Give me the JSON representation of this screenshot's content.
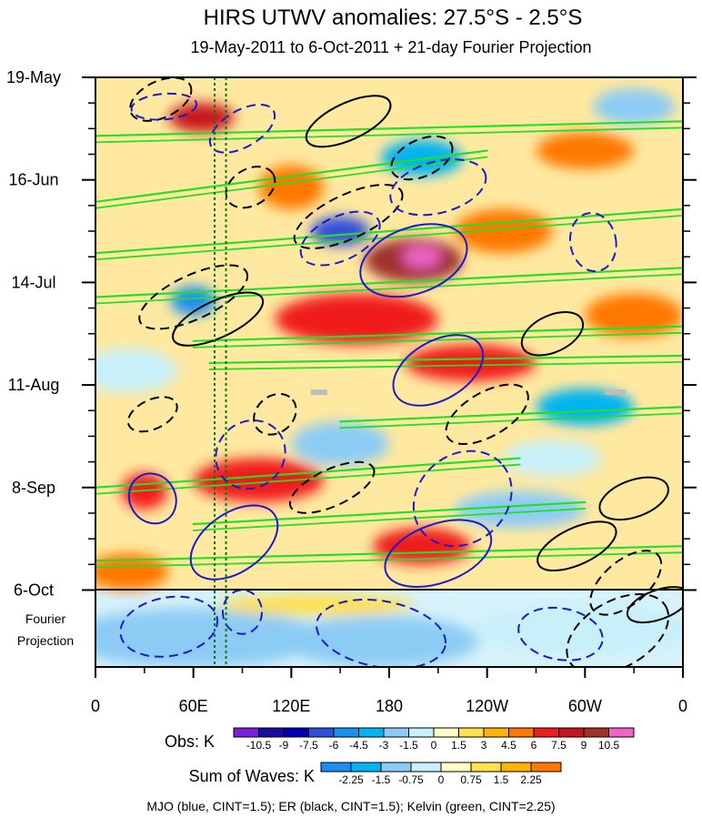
{
  "chart_data": {
    "type": "heatmap",
    "title": "HIRS UTWV anomalies: 27.5°S - 2.5°S",
    "subtitle": "19-May-2011 to 6-Oct-2011 + 21-day Fourier Projection",
    "x_axis": {
      "ticks": [
        "0",
        "60E",
        "120E",
        "180",
        "120W",
        "60W",
        "0"
      ],
      "tick_values": [
        0,
        60,
        120,
        180,
        240,
        300,
        360
      ],
      "range": [
        0,
        360
      ],
      "units": "degrees longitude"
    },
    "y_axis": {
      "ticks": [
        "19-May",
        "16-Jun",
        "14-Jul",
        "11-Aug",
        "8-Sep",
        "6-Oct"
      ],
      "tick_days": [
        0,
        28,
        56,
        84,
        112,
        140
      ],
      "range_days": [
        0,
        161
      ],
      "projection_label_line1": "Fourier",
      "projection_label_line2": "Projection",
      "projection_start_day": 140,
      "projection_length_days": 21
    },
    "obs_colorbar": {
      "label": "Obs: K",
      "levels": [
        "-10.5",
        "-9",
        "-7.5",
        "-6",
        "-4.5",
        "-3",
        "-1.5",
        "0",
        "1.5",
        "3",
        "4.5",
        "6",
        "7.5",
        "9",
        "10.5"
      ],
      "colors": [
        "#7a1fe0",
        "#1a0c9e",
        "#0000b4",
        "#3050d8",
        "#1a8ff0",
        "#00b4f0",
        "#8cccf4",
        "#c8f0fa",
        "#ffffc8",
        "#ffe050",
        "#ffb400",
        "#ff7800",
        "#f01e1e",
        "#c8141e",
        "#a0322d",
        "#f064c8"
      ]
    },
    "wave_colorbar": {
      "label": "Sum of Waves: K",
      "levels": [
        "-2.25",
        "-1.5",
        "-0.75",
        "0",
        "0.75",
        "1.5",
        "2.25"
      ],
      "colors": [
        "#1a8ff0",
        "#00b4f0",
        "#8cccf4",
        "#c8f0fa",
        "#ffffc8",
        "#ffe050",
        "#ffb400",
        "#ff7800"
      ]
    },
    "overlay_legend": "MJO (blue, CINT=1.5); ER (black, CINT=1.5); Kelvin (green, CINT=2.25)",
    "reference_lines_lon": [
      73,
      80
    ],
    "missing_data_segments": [
      {
        "lon_start": 132,
        "lon_end": 142,
        "day": 86
      },
      {
        "lon_start": 312,
        "lon_end": 325,
        "day": 86
      }
    ],
    "mjo_contours": [
      {
        "lon": 42,
        "day": 8,
        "rx": 20,
        "ry": 3.5,
        "angle": -5,
        "sign": "neg"
      },
      {
        "lon": 90,
        "day": 14,
        "rx": 22,
        "ry": 5,
        "angle": -30,
        "sign": "neg"
      },
      {
        "lon": 150,
        "day": 44,
        "rx": 26,
        "ry": 6,
        "angle": -25,
        "sign": "neg"
      },
      {
        "lon": 195,
        "day": 50,
        "rx": 34,
        "ry": 9,
        "angle": -20,
        "sign": "pos"
      },
      {
        "lon": 210,
        "day": 30,
        "rx": 30,
        "ry": 7,
        "angle": -15,
        "sign": "neg"
      },
      {
        "lon": 305,
        "day": 45,
        "rx": 14,
        "ry": 8,
        "angle": -10,
        "sign": "neg"
      },
      {
        "lon": 210,
        "day": 80,
        "rx": 30,
        "ry": 8,
        "angle": -30,
        "sign": "pos"
      },
      {
        "lon": 95,
        "day": 103,
        "rx": 22,
        "ry": 9,
        "angle": -40,
        "sign": "neg"
      },
      {
        "lon": 35,
        "day": 115,
        "rx": 14,
        "ry": 7,
        "angle": -30,
        "sign": "pos"
      },
      {
        "lon": 225,
        "day": 115,
        "rx": 32,
        "ry": 12,
        "angle": -40,
        "sign": "neg"
      },
      {
        "lon": 85,
        "day": 127,
        "rx": 30,
        "ry": 8,
        "angle": -35,
        "sign": "pos"
      },
      {
        "lon": 210,
        "day": 130,
        "rx": 34,
        "ry": 8,
        "angle": -20,
        "sign": "pos"
      },
      {
        "lon": 45,
        "day": 150,
        "rx": 30,
        "ry": 8,
        "angle": -10,
        "sign": "neg"
      },
      {
        "lon": 90,
        "day": 146,
        "rx": 12,
        "ry": 6,
        "angle": 0,
        "sign": "neg"
      },
      {
        "lon": 175,
        "day": 152,
        "rx": 40,
        "ry": 9,
        "angle": 10,
        "sign": "neg"
      },
      {
        "lon": 285,
        "day": 152,
        "rx": 26,
        "ry": 7,
        "angle": 10,
        "sign": "neg"
      }
    ],
    "er_contours": [
      {
        "lon": 40,
        "day": 6,
        "rx": 20,
        "ry": 5,
        "angle": -25,
        "sign": "neg"
      },
      {
        "lon": 155,
        "day": 12,
        "rx": 28,
        "ry": 5,
        "angle": -25,
        "sign": "pos"
      },
      {
        "lon": 95,
        "day": 30,
        "rx": 16,
        "ry": 5,
        "angle": -30,
        "sign": "neg"
      },
      {
        "lon": 200,
        "day": 22,
        "rx": 20,
        "ry": 5,
        "angle": -25,
        "sign": "neg"
      },
      {
        "lon": 60,
        "day": 60,
        "rx": 36,
        "ry": 6,
        "angle": -25,
        "sign": "neg"
      },
      {
        "lon": 75,
        "day": 66,
        "rx": 30,
        "ry": 5,
        "angle": -25,
        "sign": "pos"
      },
      {
        "lon": 155,
        "day": 38,
        "rx": 36,
        "ry": 6,
        "angle": -25,
        "sign": "neg"
      },
      {
        "lon": 110,
        "day": 92,
        "rx": 14,
        "ry": 5,
        "angle": -40,
        "sign": "neg"
      },
      {
        "lon": 35,
        "day": 92,
        "rx": 16,
        "ry": 4,
        "angle": -25,
        "sign": "neg"
      },
      {
        "lon": 240,
        "day": 92,
        "rx": 28,
        "ry": 6,
        "angle": -30,
        "sign": "neg"
      },
      {
        "lon": 145,
        "day": 112,
        "rx": 28,
        "ry": 5,
        "angle": -25,
        "sign": "neg"
      },
      {
        "lon": 280,
        "day": 70,
        "rx": 20,
        "ry": 5,
        "angle": -25,
        "sign": "pos"
      },
      {
        "lon": 330,
        "day": 115,
        "rx": 22,
        "ry": 5,
        "angle": -20,
        "sign": "pos"
      },
      {
        "lon": 325,
        "day": 138,
        "rx": 26,
        "ry": 6,
        "angle": -40,
        "sign": "neg"
      },
      {
        "lon": 295,
        "day": 128,
        "rx": 26,
        "ry": 5,
        "angle": -25,
        "sign": "pos"
      },
      {
        "lon": 320,
        "day": 152,
        "rx": 34,
        "ry": 9,
        "angle": -30,
        "sign": "neg"
      },
      {
        "lon": 345,
        "day": 144,
        "rx": 20,
        "ry": 4,
        "angle": -20,
        "sign": "pos"
      }
    ],
    "kelvin_bands": [
      {
        "lon_start": 0,
        "day_start": 16,
        "lon_end": 360,
        "day_end": 12
      },
      {
        "lon_start": 0,
        "day_start": 34,
        "lon_end": 240,
        "day_end": 20
      },
      {
        "lon_start": 0,
        "day_start": 48,
        "lon_end": 360,
        "day_end": 36
      },
      {
        "lon_start": 0,
        "day_start": 60,
        "lon_end": 360,
        "day_end": 52
      },
      {
        "lon_start": 60,
        "day_start": 72,
        "lon_end": 360,
        "day_end": 68
      },
      {
        "lon_start": 70,
        "day_start": 78,
        "lon_end": 360,
        "day_end": 76
      },
      {
        "lon_start": 150,
        "day_start": 94,
        "lon_end": 360,
        "day_end": 90
      },
      {
        "lon_start": 0,
        "day_start": 112,
        "lon_end": 260,
        "day_end": 104
      },
      {
        "lon_start": 60,
        "day_start": 122,
        "lon_end": 300,
        "day_end": 116
      },
      {
        "lon_start": 0,
        "day_start": 132,
        "lon_end": 360,
        "day_end": 128
      }
    ],
    "obs_field": [
      {
        "lon": 65,
        "day": 11,
        "rx": 20,
        "ry": 4,
        "value": 7.5
      },
      {
        "lon": 195,
        "day": 50,
        "rx": 30,
        "ry": 6,
        "value": 9
      },
      {
        "lon": 200,
        "day": 49,
        "rx": 12,
        "ry": 3,
        "value": 10.5
      },
      {
        "lon": 160,
        "day": 66,
        "rx": 50,
        "ry": 7,
        "value": 6
      },
      {
        "lon": 230,
        "day": 78,
        "rx": 40,
        "ry": 5,
        "value": 6
      },
      {
        "lon": 100,
        "day": 110,
        "rx": 40,
        "ry": 6,
        "value": 6
      },
      {
        "lon": 30,
        "day": 113,
        "rx": 14,
        "ry": 5,
        "value": 6
      },
      {
        "lon": 200,
        "day": 128,
        "rx": 30,
        "ry": 5,
        "value": 6
      },
      {
        "lon": 120,
        "day": 30,
        "rx": 20,
        "ry": 6,
        "value": 4.5
      },
      {
        "lon": 300,
        "day": 20,
        "rx": 30,
        "ry": 5,
        "value": 4.5
      },
      {
        "lon": 250,
        "day": 42,
        "rx": 30,
        "ry": 6,
        "value": 4.5
      },
      {
        "lon": 330,
        "day": 65,
        "rx": 30,
        "ry": 6,
        "value": 4.5
      },
      {
        "lon": 20,
        "day": 135,
        "rx": 25,
        "ry": 5,
        "value": 4.5
      },
      {
        "lon": 150,
        "day": 42,
        "rx": 18,
        "ry": 4,
        "value": -7.5
      },
      {
        "lon": 60,
        "day": 61,
        "rx": 14,
        "ry": 4,
        "value": -6
      },
      {
        "lon": 200,
        "day": 22,
        "rx": 25,
        "ry": 5,
        "value": -4.5
      },
      {
        "lon": 300,
        "day": 90,
        "rx": 30,
        "ry": 5,
        "value": -4.5
      },
      {
        "lon": 150,
        "day": 100,
        "rx": 30,
        "ry": 6,
        "value": -3
      },
      {
        "lon": 330,
        "day": 8,
        "rx": 25,
        "ry": 5,
        "value": -3
      },
      {
        "lon": 260,
        "day": 118,
        "rx": 40,
        "ry": 5,
        "value": -3
      },
      {
        "lon": 20,
        "day": 80,
        "rx": 30,
        "ry": 6,
        "value": -1.5
      },
      {
        "lon": 280,
        "day": 104,
        "rx": 30,
        "ry": 5,
        "value": -1.5
      }
    ],
    "projection_field": [
      {
        "lon": 60,
        "day": 153,
        "rx": 80,
        "ry": 8,
        "value": -1.5
      },
      {
        "lon": 175,
        "day": 154,
        "rx": 60,
        "ry": 7,
        "value": -1.5
      },
      {
        "lon": 300,
        "day": 151,
        "rx": 70,
        "ry": 7,
        "value": -0.75
      },
      {
        "lon": 135,
        "day": 144,
        "rx": 60,
        "ry": 3,
        "value": 0.75
      }
    ]
  }
}
